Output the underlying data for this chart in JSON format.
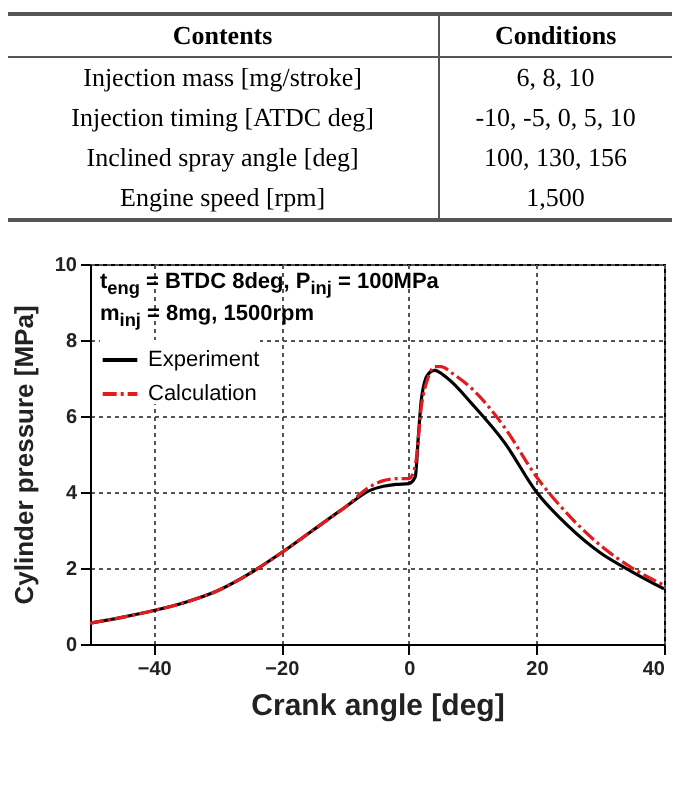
{
  "chart_data": [
    {
      "type": "other",
      "categories": [
        "Contents",
        "Conditions"
      ],
      "y_categories": [
        "Injection  mass  [mg/stroke]",
        "Injection  timing  [ATDC  deg]",
        "Inclined  spray  angle  [deg]",
        "Engine  speed  [rpm]"
      ],
      "cell_labels": [
        [
          "6,  8,  10"
        ],
        [
          "-10,  -5,  0,  5,  10"
        ],
        [
          "100,  130,  156"
        ],
        [
          "1,500"
        ]
      ]
    },
    {
      "type": "line",
      "xlabel": "Crank angle [deg]",
      "ylabel": "Cylinder pressure [MPa]",
      "annotations": [
        "t$_{eng}$ = BTDC 8deg, P$_{inj}$ = 100MPa",
        "m$_{inj}$ = 8mg, 1500rpm"
      ],
      "xlim": [
        -50,
        40
      ],
      "xticks": [
        -40,
        -20,
        0,
        20,
        40
      ],
      "ylim": [
        0,
        10
      ],
      "yticks": [
        0,
        2,
        4,
        6,
        8,
        10
      ],
      "grid": true,
      "legend": "top left",
      "series": [
        {
          "name": "Experiment",
          "color": "#000000",
          "line_style": "solid",
          "x": [
            -50,
            -45,
            -40,
            -35,
            -30,
            -25,
            -20,
            -15,
            -10,
            -6,
            -4,
            -2,
            0,
            1,
            1.5,
            2,
            3,
            4,
            6,
            10,
            15,
            20,
            25,
            30,
            35,
            40
          ],
          "values": [
            0.55,
            0.7,
            0.88,
            1.1,
            1.4,
            1.85,
            2.4,
            3.0,
            3.6,
            4.05,
            4.15,
            4.2,
            4.22,
            4.4,
            5.5,
            6.5,
            7.1,
            7.2,
            7.0,
            6.3,
            5.3,
            4.0,
            3.1,
            2.4,
            1.9,
            1.45
          ]
        },
        {
          "name": "Calculation",
          "color": "#e41a1c",
          "line_style": "dashed",
          "x": [
            -50,
            -45,
            -40,
            -35,
            -30,
            -25,
            -20,
            -15,
            -10,
            -6,
            -4,
            -2,
            0,
            1,
            2,
            3,
            4,
            5,
            7,
            10,
            15,
            20,
            25,
            30,
            35,
            40
          ],
          "values": [
            0.55,
            0.7,
            0.88,
            1.1,
            1.4,
            1.85,
            2.4,
            3.0,
            3.6,
            4.15,
            4.3,
            4.35,
            4.35,
            4.7,
            6.3,
            7.0,
            7.3,
            7.3,
            7.1,
            6.7,
            5.7,
            4.4,
            3.4,
            2.6,
            2.0,
            1.55
          ]
        }
      ]
    }
  ]
}
